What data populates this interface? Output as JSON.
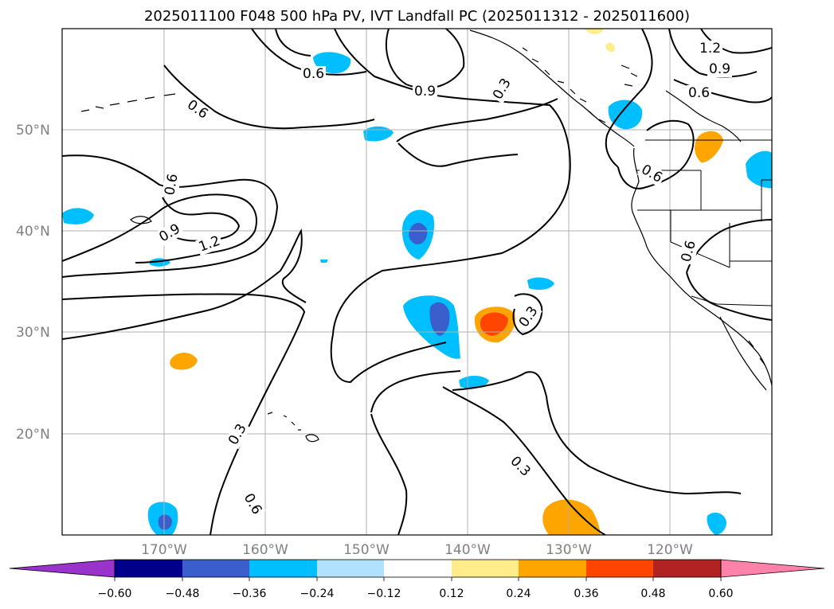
{
  "title": "2025011100 F048 500 hPa PV, IVT Landfall PC (2025011312 - 2025011600)",
  "map": {
    "lon_labels": [
      "170°W",
      "160°W",
      "150°W",
      "140°W",
      "130°W",
      "120°W"
    ],
    "lat_labels": [
      "50°N",
      "40°N",
      "30°N",
      "20°N"
    ],
    "contour_labels": [
      "1.2",
      "0.9",
      "0.6",
      "0.9",
      "0.6",
      "0.3",
      "0.6",
      "0.9",
      "1.2",
      "0.6",
      "0.3",
      "0.6",
      "0.6",
      "0.3",
      "0.3",
      "0.6"
    ]
  },
  "colorbar": {
    "colors": [
      "#9933cc",
      "#00008b",
      "#3a5fcd",
      "#00bfff",
      "#b0e2ff",
      "#ffffff",
      "#ffec8b",
      "#ffa500",
      "#ff4500",
      "#b22222",
      "#ff82ab"
    ],
    "tick_labels": [
      "−0.60",
      "−0.48",
      "−0.36",
      "−0.24",
      "−0.12",
      "0.12",
      "0.24",
      "0.36",
      "0.48",
      "0.60"
    ]
  }
}
